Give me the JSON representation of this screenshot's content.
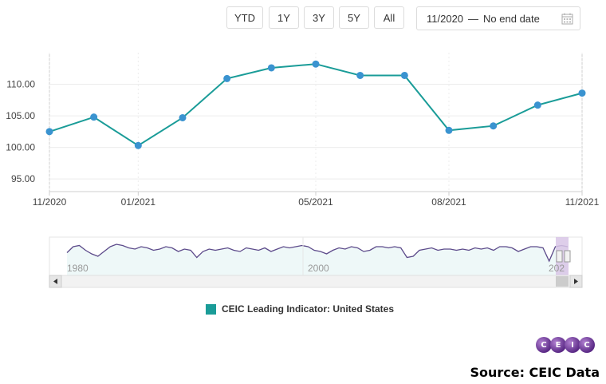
{
  "toolbar": {
    "buttons": [
      "YTD",
      "1Y",
      "3Y",
      "5Y",
      "All"
    ],
    "date_start": "11/2020",
    "date_end": "No end date"
  },
  "chart_data": {
    "type": "line",
    "title": "",
    "x": [
      "11/2020",
      "12/2020",
      "01/2021",
      "02/2021",
      "03/2021",
      "04/2021",
      "05/2021",
      "06/2021",
      "07/2021",
      "08/2021",
      "09/2021",
      "10/2021",
      "11/2021"
    ],
    "xticks": [
      "11/2020",
      "01/2021",
      "05/2021",
      "08/2021",
      "11/2021"
    ],
    "yticks": [
      "95.00",
      "100.00",
      "105.00",
      "110.00"
    ],
    "ylim": [
      93,
      115
    ],
    "grid": true,
    "series": [
      {
        "name": "CEIC Leading Indicator: United States",
        "color": "#1a9c98",
        "point_color": "#3a93d0",
        "values": [
          102.5,
          104.8,
          100.3,
          104.7,
          110.9,
          112.6,
          113.2,
          111.4,
          111.4,
          102.7,
          103.4,
          106.7,
          108.6
        ]
      }
    ],
    "legend_position": "bottom"
  },
  "navigator": {
    "labels": [
      "1980",
      "2000",
      "202"
    ],
    "series": [
      0.55,
      0.3,
      0.25,
      0.45,
      0.6,
      0.7,
      0.5,
      0.3,
      0.2,
      0.25,
      0.35,
      0.4,
      0.3,
      0.35,
      0.45,
      0.4,
      0.3,
      0.35,
      0.5,
      0.4,
      0.45,
      0.75,
      0.5,
      0.4,
      0.45,
      0.4,
      0.35,
      0.45,
      0.5,
      0.35,
      0.4,
      0.45,
      0.35,
      0.5,
      0.4,
      0.3,
      0.35,
      0.3,
      0.25,
      0.3,
      0.45,
      0.5,
      0.6,
      0.45,
      0.35,
      0.4,
      0.3,
      0.35,
      0.5,
      0.45,
      0.3,
      0.3,
      0.35,
      0.3,
      0.35,
      0.75,
      0.7,
      0.45,
      0.4,
      0.35,
      0.45,
      0.4,
      0.4,
      0.45,
      0.4,
      0.45,
      0.35,
      0.4,
      0.35,
      0.45,
      0.3,
      0.3,
      0.35,
      0.5,
      0.4,
      0.3,
      0.3,
      0.35,
      0.9,
      0.3,
      0.25,
      0.3
    ]
  },
  "legend": {
    "label": "CEIC Leading Indicator: United States",
    "color": "#1a9c98"
  },
  "logo_letters": [
    "C",
    "E",
    "I",
    "C"
  ],
  "source": "Source: CEIC Data"
}
